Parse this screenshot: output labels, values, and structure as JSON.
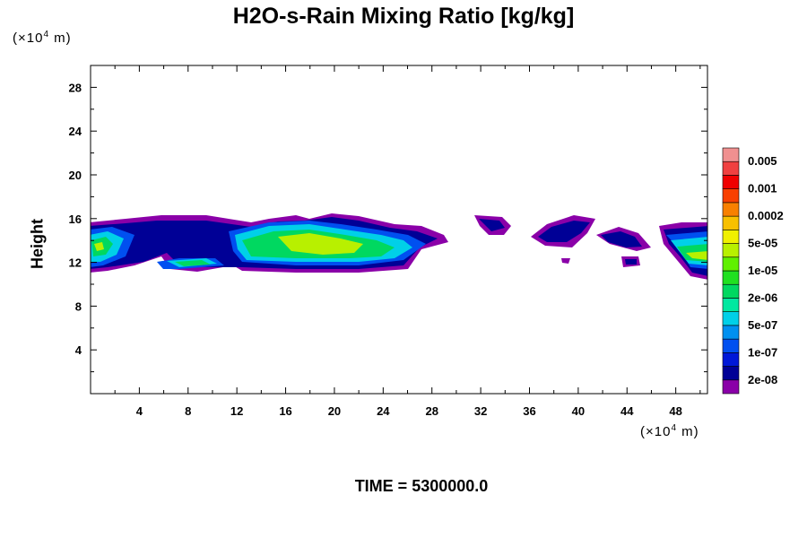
{
  "chart_data": {
    "type": "heatmap",
    "title": "H2O-s-Rain Mixing Ratio [kg/kg]",
    "ylabel": "Height",
    "xunit_prefix": "(×10",
    "xunit_exp": "4",
    "xunit_suffix": " m)",
    "yunit_prefix": "(×10",
    "yunit_exp": "4",
    "yunit_suffix": " m)",
    "xlim": [
      0,
      50.6
    ],
    "ylim": [
      0,
      30
    ],
    "xticks": [
      4,
      8,
      12,
      16,
      20,
      24,
      28,
      32,
      36,
      40,
      44,
      48
    ],
    "yticks": [
      4,
      8,
      12,
      16,
      20,
      24,
      28
    ],
    "colorbar": {
      "colors": [
        "#8a00a8",
        "#000096",
        "#0018d8",
        "#0050f0",
        "#0090f0",
        "#00d0e8",
        "#00e8a0",
        "#00d860",
        "#20e020",
        "#60f000",
        "#b8f000",
        "#f0f000",
        "#f8c000",
        "#f88000",
        "#f84000",
        "#f00000",
        "#f04040",
        "#f09090"
      ],
      "labels": [
        "2e-08",
        "1e-07",
        "5e-07",
        "2e-06",
        "1e-05",
        "5e-05",
        "0.0002",
        "0.001",
        "0.005"
      ]
    },
    "footer": "TIME = 5300000.0"
  }
}
